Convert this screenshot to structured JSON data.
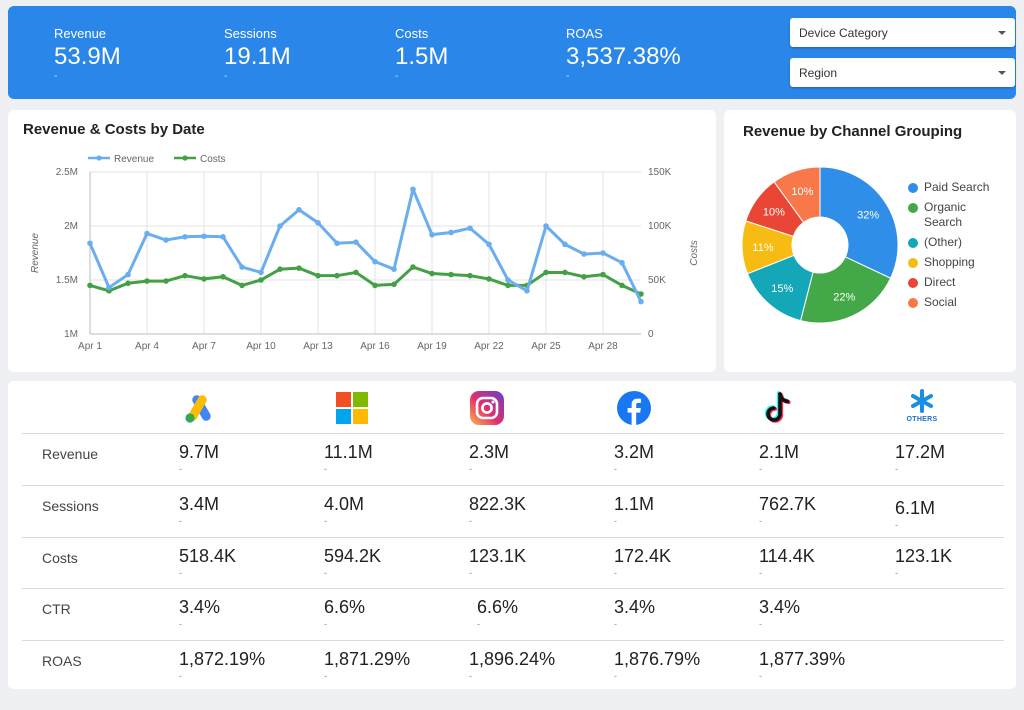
{
  "kpis": [
    {
      "label": "Revenue",
      "value": "53.9M",
      "delta": "-"
    },
    {
      "label": "Sessions",
      "value": "19.1M",
      "delta": "-"
    },
    {
      "label": "Costs",
      "value": "1.5M",
      "delta": "-"
    },
    {
      "label": "ROAS",
      "value": "3,537.38%",
      "delta": "-"
    }
  ],
  "filters": [
    {
      "label": "Device Category"
    },
    {
      "label": "Region"
    }
  ],
  "line_chart": {
    "title": "Revenue & Costs by Date",
    "chart_data": {
      "type": "line",
      "x_ticks": [
        "Apr 1",
        "Apr 4",
        "Apr 7",
        "Apr 10",
        "Apr 13",
        "Apr 16",
        "Apr 19",
        "Apr 22",
        "Apr 25",
        "Apr 28"
      ],
      "y_left_ticks": [
        "2.5M",
        "2M",
        "1.5M",
        "1M"
      ],
      "y_right_ticks": [
        "150K",
        "100K",
        "50K",
        "0"
      ],
      "ylabel_left": "Revenue",
      "ylabel_right": "Costs",
      "ylim_left": [
        1000000,
        2500000
      ],
      "ylim_right": [
        0,
        150000
      ],
      "series": [
        {
          "name": "Revenue",
          "color": "#6aaeef",
          "axis": "left",
          "values": [
            1840000,
            1430000,
            1550000,
            1930000,
            1870000,
            1900000,
            1905000,
            1900000,
            1620000,
            1570000,
            2000000,
            2150000,
            2030000,
            1840000,
            1850000,
            1670000,
            1600000,
            2340000,
            1920000,
            1940000,
            1980000,
            1830000,
            1500000,
            1400000,
            2000000,
            1830000,
            1740000,
            1750000,
            1660000,
            1300000
          ]
        },
        {
          "name": "Costs",
          "color": "#43a047",
          "axis": "left",
          "values": [
            1450000,
            1400000,
            1470000,
            1490000,
            1490000,
            1540000,
            1510000,
            1530000,
            1450000,
            1500000,
            1600000,
            1610000,
            1540000,
            1540000,
            1570000,
            1450000,
            1460000,
            1620000,
            1560000,
            1550000,
            1540000,
            1510000,
            1450000,
            1450000,
            1570000,
            1570000,
            1530000,
            1550000,
            1450000,
            1370000
          ]
        }
      ]
    }
  },
  "pie_chart": {
    "title": "Revenue by Channel Grouping",
    "chart_data": {
      "type": "pie",
      "slices": [
        {
          "name": "Paid Search",
          "value": 32,
          "label": "32%",
          "color": "#2f8ee8"
        },
        {
          "name": "Organic Search",
          "value": 22,
          "label": "22%",
          "color": "#43a848"
        },
        {
          "name": "(Other)",
          "value": 15,
          "label": "15%",
          "color": "#14a7b8"
        },
        {
          "name": "Shopping",
          "value": 11,
          "label": "11%",
          "color": "#f7bc14"
        },
        {
          "name": "Direct",
          "value": 10,
          "label": "10%",
          "color": "#ea4635"
        },
        {
          "name": "Social",
          "value": 10,
          "label": "10%",
          "color": "#f9784a"
        }
      ]
    }
  },
  "table": {
    "columns": [
      {
        "icon": "google-ads-logo"
      },
      {
        "icon": "microsoft-logo"
      },
      {
        "icon": "instagram-logo"
      },
      {
        "icon": "facebook-logo"
      },
      {
        "icon": "tiktok-logo"
      },
      {
        "icon": "others-logo",
        "text": "OTHERS"
      }
    ],
    "rows": [
      {
        "label": "Revenue",
        "cells": [
          "9.7M",
          "11.1M",
          "2.3M",
          "3.2M",
          "2.1M",
          "17.2M"
        ]
      },
      {
        "label": "Sessions",
        "cells": [
          "3.4M",
          "4.0M",
          "822.3K",
          "1.1M",
          "762.7K",
          "6.1M"
        ]
      },
      {
        "label": "Costs",
        "cells": [
          "518.4K",
          "594.2K",
          "123.1K",
          "172.4K",
          "114.4K",
          "123.1K"
        ]
      },
      {
        "label": "CTR",
        "cells": [
          "3.4%",
          "6.6%",
          "6.6%",
          "3.4%",
          "3.4%",
          ""
        ]
      },
      {
        "label": "ROAS",
        "cells": [
          "1,872.19%",
          "1,871.29%",
          "1,896.24%",
          "1,876.79%",
          "1,877.39%",
          ""
        ]
      }
    ],
    "delta": "-"
  }
}
